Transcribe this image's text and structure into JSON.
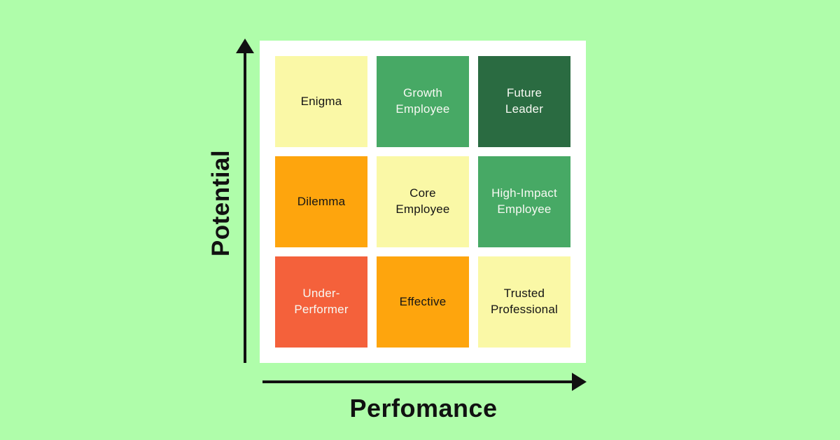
{
  "canvas": {
    "background_color": "#AFFDAA",
    "panel_background_color": "#FFFFFF"
  },
  "axes": {
    "y_label": "Potential",
    "x_label": "Perfomance",
    "line_color": "#111111"
  },
  "matrix": {
    "cells": [
      {
        "id": "enigma",
        "label": "Enigma",
        "bg": "#FAF8A6",
        "fg": "#151515"
      },
      {
        "id": "growth-employee",
        "label": "Growth\nEmployee",
        "bg": "#47A965",
        "fg": "#F7F9F3"
      },
      {
        "id": "future-leader",
        "label": "Future\nLeader",
        "bg": "#2A6B41",
        "fg": "#F7F9F3"
      },
      {
        "id": "dilemma",
        "label": "Dilemma",
        "bg": "#FEA50D",
        "fg": "#151515"
      },
      {
        "id": "core-employee",
        "label": "Core\nEmployee",
        "bg": "#FAF8A6",
        "fg": "#151515"
      },
      {
        "id": "high-impact-employee",
        "label": "High-Impact\nEmployee",
        "bg": "#47A965",
        "fg": "#F7F9F3"
      },
      {
        "id": "under-performer",
        "label": "Under-\nPerformer",
        "bg": "#F4613B",
        "fg": "#F7F9F3"
      },
      {
        "id": "effective",
        "label": "Effective",
        "bg": "#FEA50D",
        "fg": "#151515"
      },
      {
        "id": "trusted-professional",
        "label": "Trusted\nProfessional",
        "bg": "#FAF8A6",
        "fg": "#151515"
      }
    ]
  }
}
